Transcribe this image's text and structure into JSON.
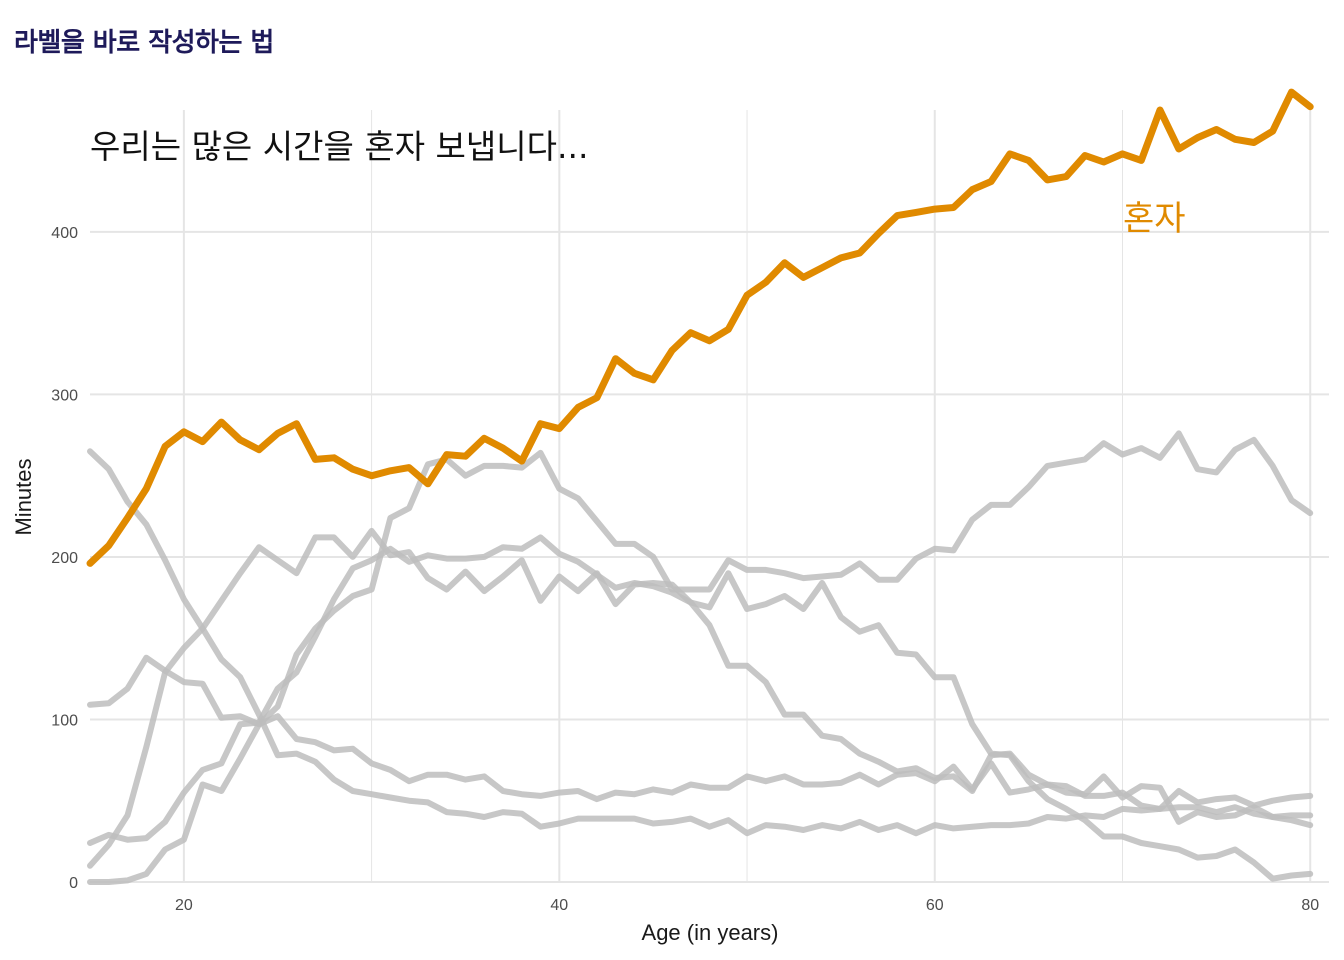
{
  "page": {
    "title": "라벨을 바로 작성하는 법"
  },
  "colors": {
    "highlight": "#E08A00",
    "other": "#BDBDBD",
    "grid": "#E5E5E5",
    "title": "#1E1A5A"
  },
  "chart_data": {
    "type": "line",
    "title": "",
    "annotation": "우리는 많은 시간을 혼자 보냅니다...",
    "xlabel": "Age (in years)",
    "ylabel": "Minutes",
    "xlim": [
      15,
      81
    ],
    "ylim": [
      0,
      475
    ],
    "x_ticks": [
      20,
      40,
      60,
      80
    ],
    "y_ticks": [
      0,
      100,
      200,
      300,
      400
    ],
    "grid": true,
    "legend": "none",
    "highlight_label": "혼자",
    "x": [
      15,
      16,
      17,
      18,
      19,
      20,
      21,
      22,
      23,
      24,
      25,
      26,
      27,
      28,
      29,
      30,
      31,
      32,
      33,
      34,
      35,
      36,
      37,
      38,
      39,
      40,
      41,
      42,
      43,
      44,
      45,
      46,
      47,
      48,
      49,
      50,
      51,
      52,
      53,
      54,
      55,
      56,
      57,
      58,
      59,
      60,
      61,
      62,
      63,
      64,
      65,
      66,
      67,
      68,
      69,
      70,
      71,
      72,
      73,
      74,
      75,
      76,
      77,
      78,
      79,
      80
    ],
    "series": [
      {
        "highlight": true,
        "values": [
          196,
          207,
          224,
          242,
          268,
          277,
          271,
          283,
          272,
          266,
          276,
          282,
          260,
          261,
          254,
          250,
          253,
          255,
          245,
          263,
          262,
          273,
          267,
          259,
          282,
          279,
          292,
          298,
          322,
          313,
          309,
          327,
          338,
          333,
          340,
          361,
          369,
          381,
          372,
          378,
          384,
          387,
          399,
          410,
          412,
          414,
          415,
          426,
          431,
          448,
          444,
          432,
          434,
          447,
          443,
          448,
          444,
          475,
          451,
          458,
          463,
          457,
          455,
          462,
          486,
          477
        ]
      },
      {
        "values": [
          265,
          254,
          234,
          220,
          198,
          174,
          156,
          137,
          126,
          103,
          78,
          79,
          74,
          63,
          56,
          54,
          52,
          50,
          49,
          43,
          42,
          40,
          43,
          42,
          34,
          36,
          39,
          39,
          39,
          39,
          36,
          37,
          39,
          34,
          38,
          30,
          35,
          34,
          32,
          35,
          33,
          37,
          32,
          35,
          30,
          35,
          33,
          34,
          35,
          35,
          36,
          40,
          39,
          41,
          40,
          45,
          44,
          45,
          46,
          46,
          43,
          46,
          42,
          40,
          38,
          35
        ]
      },
      {
        "values": [
          109,
          110,
          119,
          138,
          130,
          123,
          122,
          101,
          102,
          97,
          102,
          88,
          86,
          81,
          82,
          73,
          69,
          62,
          66,
          66,
          63,
          65,
          56,
          54,
          53,
          55,
          56,
          51,
          55,
          54,
          57,
          55,
          60,
          58,
          58,
          65,
          62,
          65,
          60,
          60,
          61,
          66,
          60,
          66,
          67,
          62,
          71,
          57,
          73,
          55,
          57,
          60,
          55,
          54,
          65,
          52,
          59,
          58,
          37,
          43,
          40,
          41,
          46,
          40,
          41,
          41
        ]
      },
      {
        "values": [
          24,
          29,
          26,
          27,
          37,
          55,
          69,
          73,
          97,
          98,
          119,
          129,
          151,
          174,
          193,
          198,
          205,
          197,
          201,
          199,
          199,
          200,
          206,
          205,
          212,
          202,
          197,
          189,
          181,
          184,
          182,
          178,
          172,
          169,
          190,
          168,
          171,
          176,
          168,
          184,
          163,
          154,
          158,
          141,
          140,
          126,
          126,
          97,
          79,
          78,
          62,
          51,
          45,
          38,
          28,
          28,
          24,
          22,
          20,
          15,
          16,
          20,
          12,
          2,
          4,
          5
        ]
      },
      {
        "values": [
          10,
          23,
          41,
          83,
          129,
          144,
          156,
          173,
          190,
          206,
          198,
          190,
          212,
          212,
          200,
          216,
          201,
          203,
          187,
          180,
          191,
          179,
          188,
          198,
          173,
          188,
          179,
          190,
          171,
          183,
          184,
          183,
          172,
          158,
          133,
          133,
          123,
          103,
          103,
          90,
          88,
          79,
          74,
          68,
          70,
          64,
          65,
          56,
          78,
          79,
          66,
          60,
          59,
          53,
          53,
          55,
          47,
          45,
          56,
          49,
          51,
          52,
          47,
          50,
          52,
          53
        ]
      },
      {
        "values": [
          0,
          0,
          1,
          5,
          20,
          26,
          60,
          56,
          76,
          97,
          108,
          140,
          156,
          167,
          176,
          180,
          224,
          230,
          257,
          260,
          250,
          256,
          256,
          255,
          264,
          242,
          236,
          222,
          208,
          208,
          200,
          180,
          180,
          180,
          198,
          192,
          192,
          190,
          187,
          188,
          189,
          196,
          186,
          186,
          199,
          205,
          204,
          223,
          232,
          232,
          243,
          256,
          258,
          260,
          270,
          263,
          267,
          261,
          276,
          254,
          252,
          266,
          272,
          256,
          235,
          227
        ]
      }
    ]
  }
}
